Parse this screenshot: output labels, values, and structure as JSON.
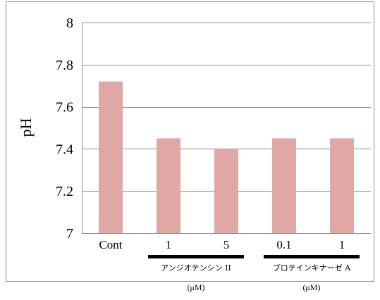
{
  "chart_data": {
    "type": "bar",
    "title": "",
    "xlabel": "",
    "ylabel": "pH",
    "ylim": [
      7,
      8
    ],
    "yticks": [
      7,
      7.2,
      7.4,
      7.6,
      7.8,
      8
    ],
    "ytick_labels": [
      "7",
      "7.2",
      "7.4",
      "7.6",
      "7.8",
      "8"
    ],
    "categories": [
      "Cont",
      "1",
      "5",
      "0.1",
      "1"
    ],
    "values": [
      7.72,
      7.45,
      7.4,
      7.45,
      7.45
    ],
    "bar_color": "#e0a8a5",
    "grid": true,
    "legend": "none",
    "groups": [
      {
        "label": "アンジオテンシン II",
        "unit": "(μM)",
        "category_indices": [
          1,
          2
        ]
      },
      {
        "label": "プロテインキナーゼ A",
        "unit": "(μM)",
        "category_indices": [
          3,
          4
        ]
      }
    ]
  }
}
